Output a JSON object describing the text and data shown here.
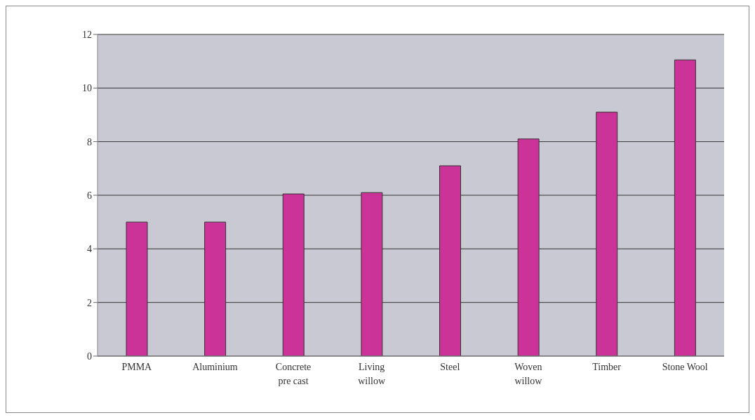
{
  "chart_data": {
    "type": "bar",
    "categories": [
      "PMMA",
      "Aluminium",
      "Concrete pre cast",
      "Living willow",
      "Steel",
      "Woven willow",
      "Timber",
      "Stone Wool"
    ],
    "values": [
      5,
      5,
      6.05,
      6.1,
      7.1,
      8.1,
      9.1,
      11.05
    ],
    "color": "#cc3399",
    "ylim": [
      0,
      12
    ],
    "yticks": [
      0,
      2,
      4,
      6,
      8,
      10,
      12
    ],
    "grid": "y",
    "legend": false
  }
}
